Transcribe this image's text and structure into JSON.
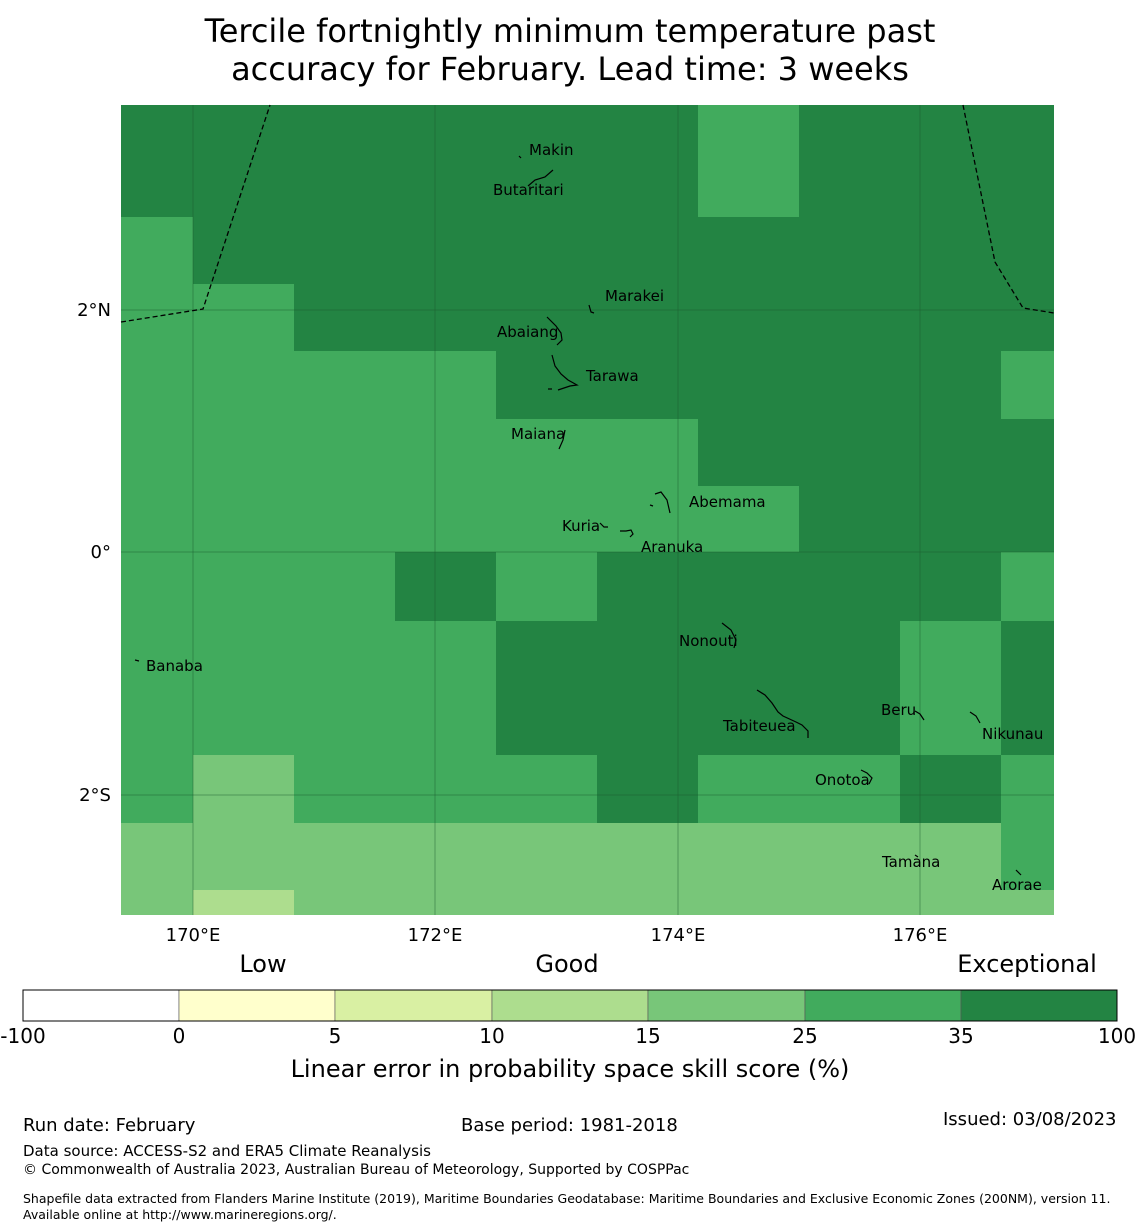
{
  "title_line1": "Tercile fortnightly minimum temperature past",
  "title_line2": "accuracy for February. Lead time: 3 weeks",
  "map": {
    "lon_labels": [
      "170°E",
      "172°E",
      "174°E",
      "176°E"
    ],
    "lat_labels": [
      "2°N",
      "0°",
      "2°S"
    ],
    "islands": [
      "Makin",
      "Butaritari",
      "Marakei",
      "Abaiang",
      "Tarawa",
      "Maiana",
      "Abemama",
      "Kuria",
      "Aranuka",
      "Banaba",
      "Nonouti",
      "Beru",
      "Nikunau",
      "Tabiteuea",
      "Onotoa",
      "Tamana",
      "Arorae"
    ],
    "class_colors": {
      "exceptional": "#238443",
      "good_high": "#41ab5d",
      "good": "#78c679",
      "low_high": "#addd8e"
    }
  },
  "legend": {
    "category_labels": [
      "Low",
      "Good",
      "Exceptional"
    ],
    "ticks": [
      "-100",
      "0",
      "5",
      "10",
      "15",
      "25",
      "35",
      "100"
    ],
    "colors": [
      "#ffffff",
      "#ffffcc",
      "#d9f0a3",
      "#addd8e",
      "#78c679",
      "#41ab5d",
      "#238443"
    ],
    "title": "Linear error in probability space skill score (%)"
  },
  "footer": {
    "run_date": "Run date: February",
    "base_period": "Base period: 1981-2018",
    "issued": "Issued: 03/08/2023",
    "data_source": "Data source: ACCESS-S2 and ERA5 Climate Reanalysis",
    "copyright": "© Commonwealth of Australia 2023, Australian Bureau of Meteorology, Supported by COSPPac",
    "shapefile": "Shapefile data extracted from Flanders Marine Institute (2019), Maritime Boundaries Geodatabase: Maritime Boundaries and Exclusive Economic Zones (200NM), version 11. Available online at http://www.marineregions.org/."
  }
}
